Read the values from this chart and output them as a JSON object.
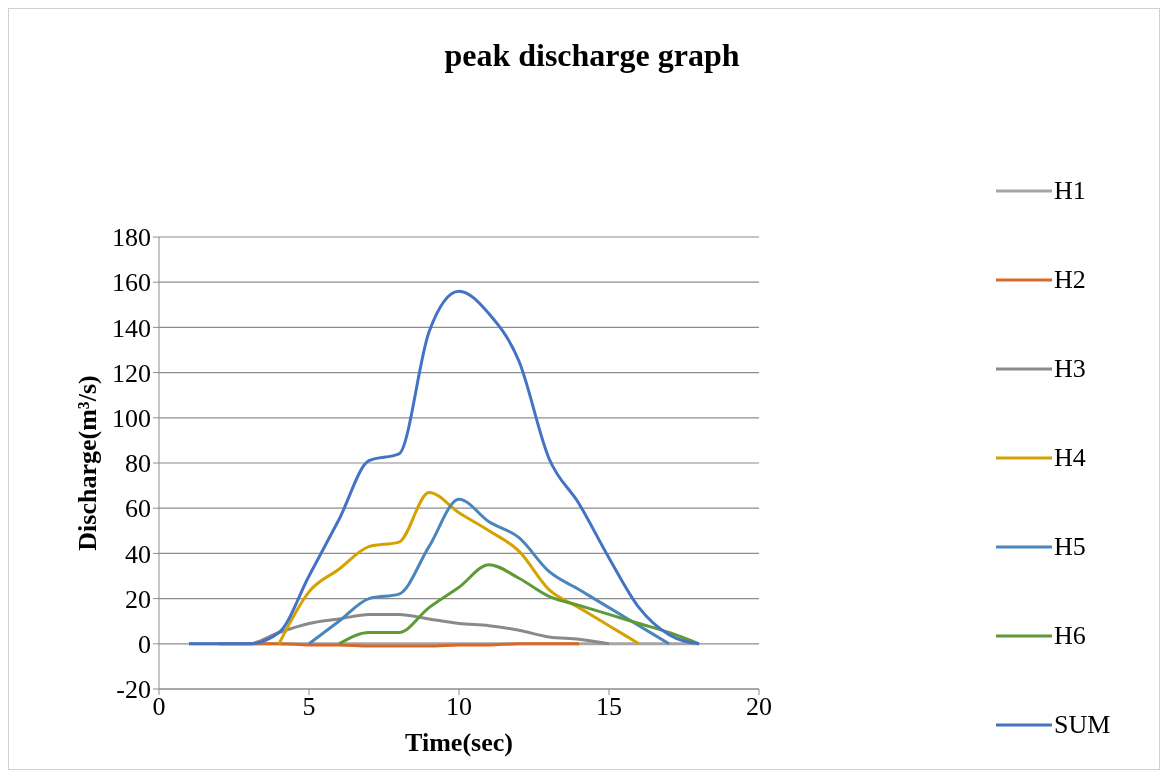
{
  "chart_data": {
    "type": "line",
    "title": "peak discharge graph",
    "xlabel": "Time(sec)",
    "ylabel": "Discharge(m³/s)",
    "xlim": [
      0,
      20
    ],
    "xticks": [
      0,
      5,
      10,
      15,
      20
    ],
    "ylim": [
      -20,
      180
    ],
    "yticks": [
      -20,
      0,
      20,
      40,
      60,
      80,
      100,
      120,
      140,
      160,
      180
    ],
    "grid": "y",
    "legend": "right",
    "marker": "none",
    "line_style": "solid",
    "series": [
      {
        "name": "H1",
        "color": "#a5a5a5",
        "x": [
          1,
          2,
          3,
          4,
          5,
          6,
          7,
          8,
          9,
          10,
          11,
          12,
          13,
          14,
          15,
          16,
          17,
          18
        ],
        "values": [
          0,
          0,
          0,
          0,
          0,
          0,
          0,
          0,
          0,
          0,
          0,
          0,
          0,
          0,
          0,
          0,
          0,
          0
        ]
      },
      {
        "name": "H2",
        "color": "#d9692a",
        "x": [
          2,
          3,
          4,
          5,
          6,
          7,
          8,
          9,
          10,
          11,
          12,
          13,
          14
        ],
        "values": [
          0,
          0,
          0,
          -0.5,
          -0.5,
          -1,
          -1,
          -1,
          -0.5,
          -0.5,
          0,
          0,
          0
        ]
      },
      {
        "name": "H3",
        "color": "#8a8a8a",
        "x": [
          2,
          3,
          4,
          5,
          6,
          7,
          8,
          9,
          10,
          11,
          12,
          13,
          14,
          15
        ],
        "values": [
          0,
          0,
          5,
          9,
          11,
          13,
          13,
          11,
          9,
          8,
          6,
          3,
          2,
          0
        ]
      },
      {
        "name": "H4",
        "color": "#d6a200",
        "x": [
          4,
          5,
          6,
          7,
          8,
          9,
          10,
          11,
          12,
          13,
          14,
          15,
          16
        ],
        "values": [
          0,
          23,
          33,
          43,
          45,
          67,
          58,
          50,
          41,
          24,
          16,
          8,
          0
        ]
      },
      {
        "name": "H5",
        "color": "#4a86bb",
        "x": [
          5,
          6,
          7,
          8,
          9,
          10,
          11,
          12,
          13,
          14,
          15,
          16,
          17
        ],
        "values": [
          0,
          10,
          20,
          22,
          43,
          64,
          54,
          47,
          32,
          24,
          16,
          8,
          0
        ]
      },
      {
        "name": "H6",
        "color": "#5f9a37",
        "x": [
          6,
          7,
          8,
          9,
          10,
          11,
          12,
          13,
          14,
          15,
          16,
          17,
          18
        ],
        "values": [
          0,
          5,
          5,
          16,
          25,
          35,
          29,
          21,
          17,
          13,
          9,
          5,
          0
        ]
      },
      {
        "name": "SUM",
        "color": "#4472c4",
        "x": [
          1,
          2,
          3,
          4,
          5,
          6,
          7,
          8,
          9,
          10,
          11,
          12,
          13,
          14,
          15,
          16,
          17,
          18
        ],
        "values": [
          0,
          0,
          0,
          5,
          30,
          55,
          81,
          84,
          138,
          156,
          146,
          125,
          82,
          62,
          38,
          16,
          4,
          0
        ]
      }
    ]
  }
}
